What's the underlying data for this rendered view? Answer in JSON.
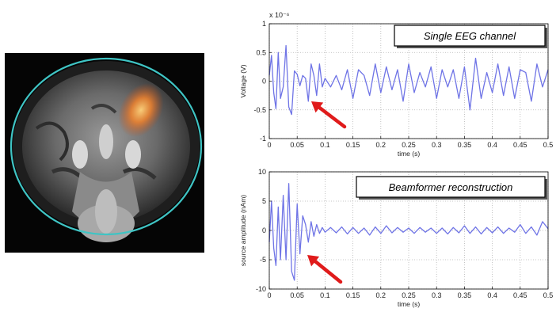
{
  "chart_data": [
    {
      "type": "line",
      "title": "Single EEG channel",
      "xlabel": "time (s)",
      "ylabel": "Voltage (V)",
      "y_scale_label": "x 10⁻⁶",
      "xlim": [
        0,
        0.5
      ],
      "ylim": [
        -1,
        1
      ],
      "xticks": [
        0,
        0.05,
        0.1,
        0.15,
        0.2,
        0.25,
        0.3,
        0.35,
        0.4,
        0.45,
        0.5
      ],
      "xtick_labels": [
        "0",
        "0.05",
        "0.1",
        "0.15",
        "0.2",
        "0.25",
        "0.3",
        "0.35",
        "0.4",
        "0.45",
        "0.5"
      ],
      "yticks": [
        -1,
        -0.5,
        0,
        0.5,
        1
      ],
      "ytick_labels": [
        "-1",
        "-0.5",
        "0",
        "0.5",
        "1"
      ],
      "grid": true,
      "series": [
        {
          "color": "#6f74e6",
          "x": [
            0,
            0.004,
            0.008,
            0.012,
            0.016,
            0.02,
            0.025,
            0.03,
            0.035,
            0.04,
            0.045,
            0.05,
            0.055,
            0.06,
            0.065,
            0.07,
            0.075,
            0.08,
            0.085,
            0.09,
            0.095,
            0.1,
            0.11,
            0.12,
            0.13,
            0.14,
            0.15,
            0.16,
            0.17,
            0.18,
            0.19,
            0.2,
            0.21,
            0.22,
            0.23,
            0.24,
            0.25,
            0.26,
            0.27,
            0.28,
            0.29,
            0.3,
            0.31,
            0.32,
            0.33,
            0.34,
            0.35,
            0.36,
            0.37,
            0.38,
            0.39,
            0.4,
            0.41,
            0.42,
            0.43,
            0.44,
            0.45,
            0.46,
            0.47,
            0.48,
            0.49,
            0.5
          ],
          "y": [
            0.1,
            0.45,
            -0.2,
            -0.48,
            0.5,
            -0.3,
            -0.1,
            0.62,
            -0.45,
            -0.58,
            0.18,
            0.12,
            -0.08,
            0.1,
            0.05,
            -0.35,
            0.3,
            0.1,
            -0.25,
            0.3,
            -0.1,
            0.05,
            -0.1,
            0.1,
            -0.15,
            0.2,
            -0.3,
            0.2,
            0.1,
            -0.25,
            0.3,
            -0.2,
            0.25,
            -0.15,
            0.2,
            -0.35,
            0.3,
            -0.2,
            0.15,
            -0.1,
            0.25,
            -0.3,
            0.2,
            -0.1,
            0.2,
            -0.3,
            0.25,
            -0.5,
            0.4,
            -0.3,
            0.15,
            -0.2,
            0.3,
            -0.25,
            0.25,
            -0.3,
            0.2,
            0.15,
            -0.35,
            0.3,
            -0.1,
            0.2
          ]
        }
      ]
    },
    {
      "type": "line",
      "title": "Beamformer reconstruction",
      "xlabel": "time (s)",
      "ylabel": "source amplitude (nAm)",
      "xlim": [
        0,
        0.5
      ],
      "ylim": [
        -10,
        10
      ],
      "xticks": [
        0,
        0.05,
        0.1,
        0.15,
        0.2,
        0.25,
        0.3,
        0.35,
        0.4,
        0.45,
        0.5
      ],
      "xtick_labels": [
        "0",
        "0.05",
        "0.1",
        "0.15",
        "0.2",
        "0.25",
        "0.3",
        "0.35",
        "0.4",
        "0.45",
        "0.5"
      ],
      "yticks": [
        -10,
        -5,
        0,
        5,
        10
      ],
      "ytick_labels": [
        "-10",
        "-5",
        "0",
        "5",
        "10"
      ],
      "grid": true,
      "series": [
        {
          "color": "#6f74e6",
          "x": [
            0,
            0.004,
            0.008,
            0.012,
            0.016,
            0.02,
            0.025,
            0.03,
            0.035,
            0.04,
            0.045,
            0.05,
            0.055,
            0.06,
            0.065,
            0.07,
            0.075,
            0.08,
            0.085,
            0.09,
            0.095,
            0.1,
            0.11,
            0.12,
            0.13,
            0.14,
            0.15,
            0.16,
            0.17,
            0.18,
            0.19,
            0.2,
            0.21,
            0.22,
            0.23,
            0.24,
            0.25,
            0.26,
            0.27,
            0.28,
            0.29,
            0.3,
            0.31,
            0.32,
            0.33,
            0.34,
            0.35,
            0.36,
            0.37,
            0.38,
            0.39,
            0.4,
            0.41,
            0.42,
            0.43,
            0.44,
            0.45,
            0.46,
            0.47,
            0.48,
            0.49,
            0.5
          ],
          "y": [
            -2,
            5,
            -3,
            -6,
            4,
            -5,
            6,
            -5,
            8,
            -7,
            -8.5,
            4.5,
            -4,
            2.5,
            1,
            -2,
            1.5,
            -1,
            1,
            -0.5,
            0.5,
            -0.3,
            0.5,
            -0.4,
            0.6,
            -0.6,
            0.5,
            -0.5,
            0.4,
            -0.8,
            0.6,
            -0.5,
            0.8,
            -0.4,
            0.5,
            -0.3,
            0.4,
            -0.5,
            0.5,
            -0.3,
            0.4,
            -0.5,
            0.4,
            -0.6,
            0.5,
            -0.4,
            0.8,
            -0.5,
            0.6,
            -0.6,
            0.5,
            -0.4,
            0.6,
            -0.5,
            0.4,
            -0.3,
            1,
            -0.5,
            0.6,
            -0.8,
            1.5,
            0.3
          ]
        }
      ]
    }
  ]
}
